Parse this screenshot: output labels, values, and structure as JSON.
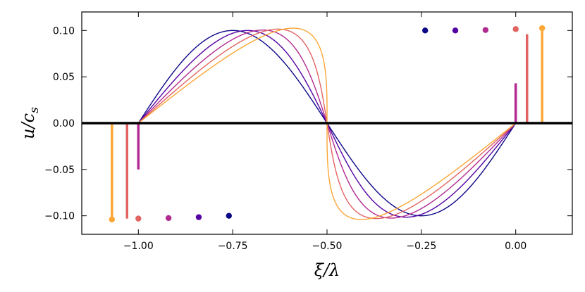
{
  "chart_data": {
    "type": "line",
    "xlabel": "ξ/λ",
    "ylabel": "u/c_s",
    "ylabel_main": "u/c",
    "ylabel_sub": "s",
    "xlim": [
      -1.15,
      0.15
    ],
    "ylim": [
      -0.12,
      0.12
    ],
    "xticks": [
      -1.0,
      -0.75,
      -0.5,
      -0.25,
      0.0
    ],
    "xtick_labels": [
      "−1.00",
      "−0.75",
      "−0.50",
      "−0.25",
      "0.00"
    ],
    "yticks": [
      -0.1,
      -0.05,
      0.0,
      0.05,
      0.1
    ],
    "ytick_labels": [
      "−0.10",
      "−0.05",
      "0.00",
      "0.05",
      "0.10"
    ],
    "grid": false,
    "zero_line": true,
    "series": [
      {
        "color": "#0d0887",
        "shift": 0.0,
        "peak": 0.1,
        "trough": -0.1,
        "shock_x_right": 0.0,
        "shock_x_left": -1.0,
        "right_jump": 0.0,
        "left_jump": 0.0,
        "max_x": -0.24,
        "min_x": -0.76
      },
      {
        "color": "#5302a3",
        "shift": 0.08,
        "peak": 0.1,
        "trough": -0.1015,
        "shock_x_right": 0.0,
        "shock_x_left": -1.0,
        "right_jump": 0.0,
        "left_jump": 0.0,
        "max_x": -0.16,
        "min_x": -0.84
      },
      {
        "color": "#b12a90",
        "shift": 0.16,
        "peak": 0.1005,
        "trough": -0.1025,
        "shock_x_right": 0.0,
        "shock_x_left": -1.0,
        "right_jump": 0.043,
        "left_jump": -0.05,
        "max_x": -0.08,
        "min_x": -0.92
      },
      {
        "color": "#e16462",
        "shift": 0.24,
        "peak": 0.1015,
        "trough": -0.103,
        "shock_x_right": 0.03,
        "shock_x_left": -1.03,
        "right_jump": 0.096,
        "left_jump": -0.103,
        "max_x": 0.0,
        "min_x": -1.0
      },
      {
        "color": "#fca636",
        "shift": 0.32,
        "peak": 0.1025,
        "trough": -0.104,
        "shock_x_right": 0.07,
        "shock_x_left": -1.07,
        "right_jump": 0.1025,
        "left_jump": -0.104,
        "max_x": 0.07,
        "min_x": -1.07
      }
    ]
  }
}
